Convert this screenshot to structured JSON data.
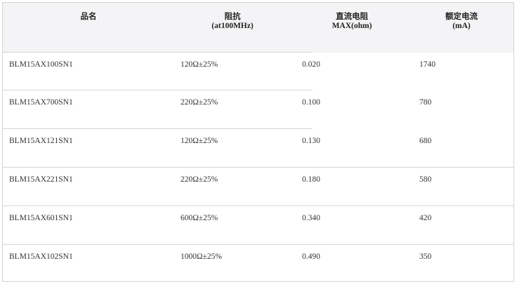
{
  "table": {
    "headers": [
      {
        "line1": "品名",
        "line2": ""
      },
      {
        "line1": "阻抗",
        "line2": "(at100MHz)"
      },
      {
        "line1": "直流电阻",
        "line2": "MAX(ohm)"
      },
      {
        "line1": "额定电流",
        "line2": "(mA)"
      }
    ],
    "rows": [
      [
        "BLM15AX100SN1",
        "120Ω±25%",
        "0.020",
        "1740"
      ],
      [
        "BLM15AX700SN1",
        "220Ω±25%",
        "0.100",
        "780"
      ],
      [
        "BLM15AX121SN1",
        "120Ω±25%",
        "0.130",
        "680"
      ],
      [
        "BLM15AX221SN1",
        "220Ω±25%",
        "0.180",
        "580"
      ],
      [
        "BLM15AX601SN1",
        "600Ω±25%",
        "0.340",
        "420"
      ],
      [
        "BLM15AX102SN1",
        "1000Ω±25%",
        "0.490",
        "350"
      ]
    ]
  }
}
